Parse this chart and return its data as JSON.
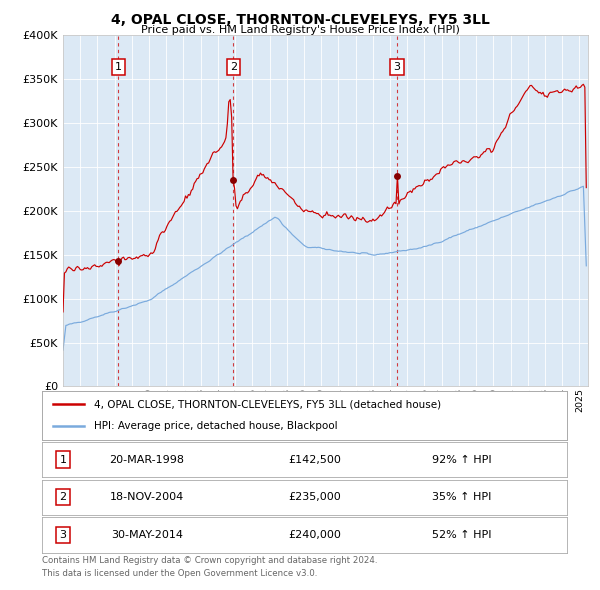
{
  "title": "4, OPAL CLOSE, THORNTON-CLEVELEYS, FY5 3LL",
  "subtitle": "Price paid vs. HM Land Registry's House Price Index (HPI)",
  "bg_color": "#dce9f5",
  "red_line_color": "#cc0000",
  "blue_line_color": "#7aaadd",
  "sale_marker_color": "#880000",
  "ylim": [
    0,
    400000
  ],
  "yticks": [
    0,
    50000,
    100000,
    150000,
    200000,
    250000,
    300000,
    350000,
    400000
  ],
  "ytick_labels": [
    "£0",
    "£50K",
    "£100K",
    "£150K",
    "£200K",
    "£250K",
    "£300K",
    "£350K",
    "£400K"
  ],
  "sales": [
    {
      "label": "1",
      "date_num": 1998.22,
      "price": 142500,
      "date_str": "20-MAR-1998",
      "pct": "92%",
      "dir": "↑"
    },
    {
      "label": "2",
      "date_num": 2004.89,
      "price": 235000,
      "date_str": "18-NOV-2004",
      "pct": "35%",
      "dir": "↑"
    },
    {
      "label": "3",
      "date_num": 2014.41,
      "price": 240000,
      "date_str": "30-MAY-2014",
      "pct": "52%",
      "dir": "↑"
    }
  ],
  "legend_line1": "4, OPAL CLOSE, THORNTON-CLEVELEYS, FY5 3LL (detached house)",
  "legend_line2": "HPI: Average price, detached house, Blackpool",
  "footer1": "Contains HM Land Registry data © Crown copyright and database right 2024.",
  "footer2": "This data is licensed under the Open Government Licence v3.0.",
  "xmin": 1995.0,
  "xmax": 2025.5
}
